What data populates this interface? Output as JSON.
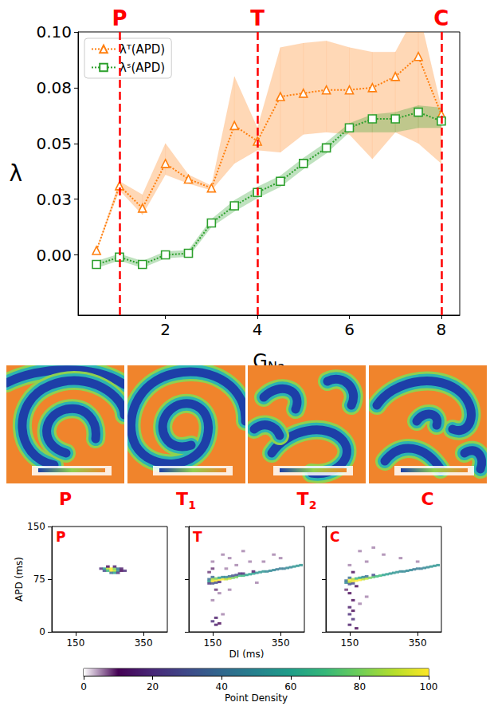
{
  "chart_data": [
    {
      "type": "line",
      "y_label": "λ",
      "x_label": {
        "text": "G",
        "subscript": "Na"
      },
      "xlim": [
        0.1,
        8.4
      ],
      "xticks": [
        2,
        4,
        6,
        8
      ],
      "ylim": [
        -0.027,
        0.1
      ],
      "yticks": [
        {
          "value": 0,
          "label": "0.00"
        },
        {
          "value": 0.025,
          "label": "0.03"
        },
        {
          "value": 0.05,
          "label": "0.05"
        },
        {
          "value": 0.075,
          "label": "0.08"
        },
        {
          "value": 0.1,
          "label": "0.10"
        }
      ],
      "grid": false,
      "legend": "upper left",
      "x": [
        0.5,
        1,
        1.5,
        2,
        2.5,
        3,
        3.5,
        4,
        4.5,
        5,
        5.5,
        6,
        6.5,
        7,
        7.5,
        8
      ],
      "series": [
        {
          "name": "λᵀ(APD)",
          "color": "#ff7f0e",
          "marker": "triangle",
          "line_style": "dotted",
          "values": [
            0.002,
            0.031,
            0.021,
            0.041,
            0.034,
            0.03,
            0.058,
            0.051,
            0.071,
            0.0725,
            0.074,
            0.074,
            0.075,
            0.08,
            0.089,
            0.063
          ],
          "band_lower": [
            0.002,
            0.029,
            0.018,
            0.036,
            0.032,
            0.029,
            0.041,
            0.047,
            0.046,
            0.054,
            0.055,
            0.054,
            0.043,
            0.055,
            0.05,
            0.041
          ],
          "band_upper": [
            0.002,
            0.033,
            0.027,
            0.05,
            0.036,
            0.031,
            0.08,
            0.057,
            0.093,
            0.095,
            0.096,
            0.093,
            0.091,
            0.091,
            0.11,
            0.066
          ]
        },
        {
          "name": "λˢ(APD)",
          "color": "#2ca02c",
          "marker": "square",
          "line_style": "dotted",
          "values": [
            -0.0043,
            -0.001,
            -0.0043,
            0.0,
            0.0007,
            0.0143,
            0.022,
            0.028,
            0.033,
            0.041,
            0.048,
            0.057,
            0.061,
            0.061,
            0.064,
            0.06
          ],
          "band_lower": [
            -0.0058,
            -0.0025,
            -0.0058,
            -0.0015,
            -0.0008,
            0.0125,
            0.0195,
            0.0255,
            0.0305,
            0.0385,
            0.0455,
            0.055,
            0.055,
            0.055,
            0.057,
            0.057
          ],
          "band_upper": [
            -0.0028,
            0.0005,
            -0.0028,
            0.0015,
            0.0022,
            0.016,
            0.0245,
            0.0305,
            0.0355,
            0.0435,
            0.0505,
            0.059,
            0.063,
            0.064,
            0.067,
            0.066
          ]
        }
      ],
      "markers": [
        {
          "x": 1,
          "label": "P",
          "color": "#ff0000"
        },
        {
          "x": 4,
          "label": "T",
          "color": "#ff0000"
        },
        {
          "x": 8,
          "label": "C",
          "color": "#ff0000"
        }
      ]
    },
    {
      "type": "heatmap",
      "title": "P",
      "y_label": "APD (ms)",
      "xlim": [
        80,
        420
      ],
      "xticks": [
        150,
        350
      ],
      "ylim": [
        0,
        150
      ],
      "yticks": [
        0,
        75,
        150
      ],
      "cell_size": [
        10,
        3
      ],
      "cells": [
        [
          225,
          90,
          20
        ],
        [
          235,
          90,
          60
        ],
        [
          245,
          90,
          90
        ],
        [
          255,
          90,
          100
        ],
        [
          265,
          90,
          80
        ],
        [
          275,
          90,
          40
        ],
        [
          285,
          90,
          15
        ],
        [
          235,
          87,
          30
        ],
        [
          245,
          87,
          70
        ],
        [
          255,
          87,
          100
        ],
        [
          265,
          87,
          90
        ],
        [
          275,
          87,
          50
        ],
        [
          285,
          87,
          10
        ],
        [
          295,
          87,
          20
        ],
        [
          255,
          84,
          40
        ],
        [
          265,
          84,
          60
        ],
        [
          275,
          84,
          20
        ],
        [
          245,
          93,
          10
        ],
        [
          265,
          93,
          15
        ]
      ]
    },
    {
      "type": "heatmap",
      "title": "T",
      "x_label": "DI (ms)",
      "tick_labels": "x",
      "xlim": [
        80,
        420
      ],
      "xticks": [
        150,
        350
      ],
      "ylim": [
        0,
        150
      ],
      "yticks": [
        0,
        75,
        150
      ],
      "cell_size": [
        10,
        3
      ],
      "cells": [
        [
          140,
          72,
          60
        ],
        [
          140,
          75,
          40
        ],
        [
          140,
          69,
          20
        ],
        [
          150,
          72,
          100
        ],
        [
          150,
          75,
          90
        ],
        [
          150,
          69,
          30
        ],
        [
          150,
          78,
          40
        ],
        [
          160,
          73,
          100
        ],
        [
          160,
          76,
          80
        ],
        [
          160,
          70,
          30
        ],
        [
          170,
          74,
          100
        ],
        [
          170,
          77,
          60
        ],
        [
          170,
          71,
          20
        ],
        [
          180,
          75,
          100
        ],
        [
          180,
          78,
          50
        ],
        [
          190,
          75,
          90
        ],
        [
          190,
          78,
          50
        ],
        [
          200,
          76,
          90
        ],
        [
          200,
          79,
          40
        ],
        [
          210,
          77,
          80
        ],
        [
          210,
          80,
          30
        ],
        [
          220,
          78,
          80
        ],
        [
          220,
          81,
          30
        ],
        [
          230,
          80,
          70
        ],
        [
          230,
          83,
          20
        ],
        [
          240,
          80,
          70
        ],
        [
          240,
          83,
          20
        ],
        [
          250,
          81,
          60
        ],
        [
          260,
          82,
          60
        ],
        [
          270,
          83,
          60
        ],
        [
          270,
          86,
          15
        ],
        [
          280,
          84,
          55
        ],
        [
          290,
          85,
          55
        ],
        [
          300,
          86,
          55
        ],
        [
          310,
          86,
          50
        ],
        [
          320,
          87,
          50
        ],
        [
          330,
          88,
          50
        ],
        [
          340,
          89,
          45
        ],
        [
          350,
          90,
          45
        ],
        [
          360,
          90,
          45
        ],
        [
          370,
          91,
          50
        ],
        [
          380,
          92,
          50
        ],
        [
          390,
          93,
          55
        ],
        [
          400,
          94,
          55
        ],
        [
          410,
          95,
          55
        ],
        [
          150,
          100,
          5
        ],
        [
          180,
          110,
          5
        ],
        [
          200,
          105,
          5
        ],
        [
          240,
          115,
          5
        ],
        [
          160,
          60,
          8
        ],
        [
          170,
          55,
          5
        ],
        [
          150,
          45,
          5
        ],
        [
          160,
          20,
          15
        ],
        [
          150,
          15,
          20
        ],
        [
          170,
          12,
          10
        ],
        [
          160,
          10,
          15
        ],
        [
          180,
          25,
          5
        ],
        [
          220,
          95,
          5
        ],
        [
          300,
          100,
          5
        ],
        [
          330,
          110,
          5
        ],
        [
          280,
          70,
          5
        ],
        [
          260,
          100,
          5
        ],
        [
          190,
          90,
          5
        ],
        [
          350,
          105,
          5
        ],
        [
          140,
          85,
          8
        ],
        [
          150,
          90,
          8
        ],
        [
          200,
          60,
          5
        ]
      ]
    },
    {
      "type": "heatmap",
      "title": "C",
      "tick_labels": "x",
      "xlim": [
        80,
        420
      ],
      "xticks": [
        150,
        350
      ],
      "ylim": [
        0,
        150
      ],
      "yticks": [
        0,
        75,
        150
      ],
      "cell_size": [
        10,
        3
      ],
      "cells": [
        [
          140,
          70,
          50
        ],
        [
          140,
          73,
          40
        ],
        [
          150,
          71,
          90
        ],
        [
          150,
          74,
          100
        ],
        [
          150,
          68,
          30
        ],
        [
          150,
          77,
          40
        ],
        [
          160,
          72,
          100
        ],
        [
          160,
          75,
          90
        ],
        [
          160,
          69,
          30
        ],
        [
          170,
          73,
          100
        ],
        [
          170,
          76,
          70
        ],
        [
          180,
          74,
          100
        ],
        [
          180,
          77,
          60
        ],
        [
          190,
          75,
          90
        ],
        [
          190,
          78,
          50
        ],
        [
          200,
          76,
          90
        ],
        [
          200,
          79,
          40
        ],
        [
          210,
          77,
          80
        ],
        [
          220,
          78,
          75
        ],
        [
          220,
          81,
          30
        ],
        [
          230,
          79,
          70
        ],
        [
          240,
          80,
          70
        ],
        [
          250,
          81,
          60
        ],
        [
          260,
          82,
          60
        ],
        [
          270,
          83,
          55
        ],
        [
          280,
          84,
          55
        ],
        [
          290,
          85,
          55
        ],
        [
          300,
          86,
          50
        ],
        [
          310,
          86,
          50
        ],
        [
          320,
          87,
          50
        ],
        [
          330,
          88,
          50
        ],
        [
          340,
          89,
          45
        ],
        [
          350,
          90,
          45
        ],
        [
          360,
          90,
          45
        ],
        [
          370,
          91,
          50
        ],
        [
          380,
          92,
          50
        ],
        [
          390,
          93,
          55
        ],
        [
          400,
          94,
          55
        ],
        [
          410,
          95,
          55
        ],
        [
          150,
          55,
          10
        ],
        [
          160,
          45,
          10
        ],
        [
          150,
          35,
          15
        ],
        [
          160,
          30,
          10
        ],
        [
          150,
          25,
          20
        ],
        [
          160,
          18,
          20
        ],
        [
          150,
          10,
          15
        ],
        [
          170,
          5,
          10
        ],
        [
          180,
          40,
          5
        ],
        [
          170,
          65,
          10
        ],
        [
          160,
          85,
          10
        ],
        [
          150,
          95,
          5
        ],
        [
          200,
          100,
          5
        ],
        [
          250,
          110,
          5
        ],
        [
          300,
          105,
          5
        ],
        [
          350,
          100,
          5
        ],
        [
          220,
          120,
          5
        ],
        [
          180,
          115,
          5
        ],
        [
          140,
          60,
          8
        ],
        [
          200,
          50,
          5
        ]
      ]
    }
  ],
  "density_colorbar": {
    "label": "Point Density",
    "range": [
      0,
      100
    ],
    "ticks": [
      0,
      20,
      40,
      60,
      80,
      100
    ],
    "colors": [
      "#ffffff",
      "#440154",
      "#482878",
      "#3e4989",
      "#31688e",
      "#26828e",
      "#1f9e89",
      "#35b779",
      "#6ece58",
      "#b5de2b",
      "#fde725"
    ]
  },
  "snapshots": [
    {
      "label": "P"
    },
    {
      "label": "T",
      "subscript": "1"
    },
    {
      "label": "T",
      "subscript": "2"
    },
    {
      "label": "C"
    }
  ]
}
